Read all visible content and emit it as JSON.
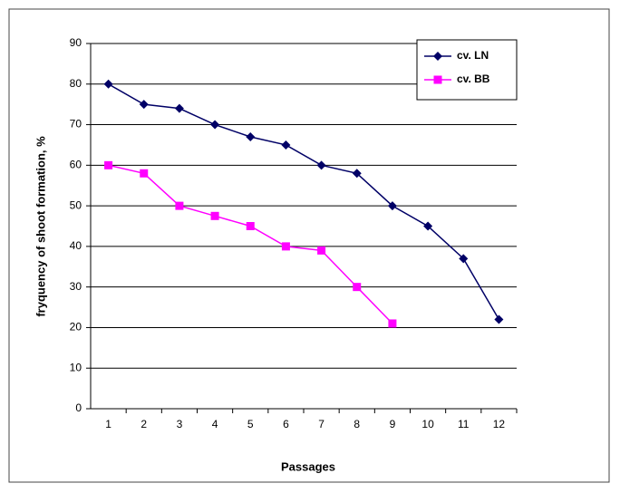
{
  "chart_data": {
    "type": "line",
    "x_label": "Passages",
    "y_label": "fryquency of shoot formation, %",
    "categories": [
      "1",
      "2",
      "3",
      "4",
      "5",
      "6",
      "7",
      "8",
      "9",
      "10",
      "11",
      "12"
    ],
    "series": [
      {
        "name": "cv. LN",
        "color": "#000066",
        "marker": "diamond",
        "values": [
          80,
          75,
          74,
          70,
          67,
          65,
          60,
          58,
          50,
          45,
          37,
          22
        ]
      },
      {
        "name": "cv. BB",
        "color": "#ff00ff",
        "marker": "square",
        "values": [
          60,
          58,
          50,
          47.5,
          45,
          40,
          39,
          30,
          21,
          null,
          null,
          null
        ]
      }
    ],
    "ylim": [
      0,
      90
    ],
    "yticks": [
      0,
      10,
      20,
      30,
      40,
      50,
      60,
      70,
      80,
      90
    ],
    "grid": true,
    "legend": "top-right"
  }
}
